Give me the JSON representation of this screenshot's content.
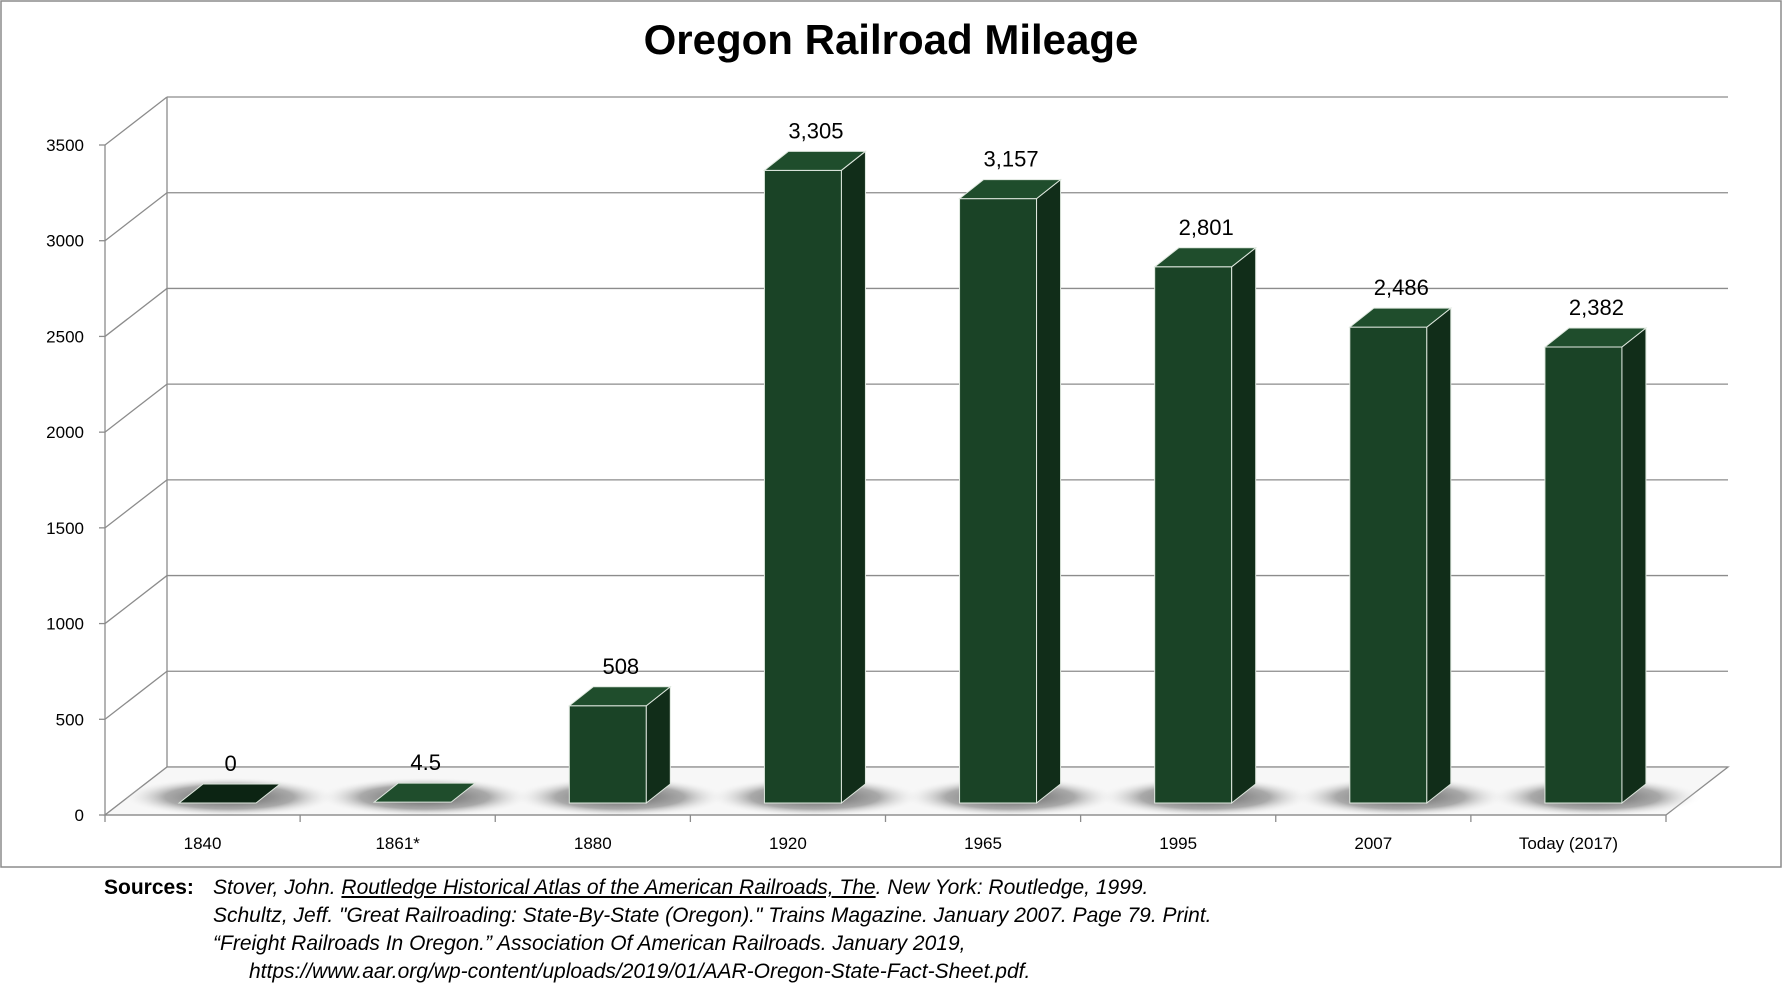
{
  "chart_data": {
    "type": "bar",
    "title": "Oregon Railroad Mileage",
    "categories": [
      "1840",
      "1861*",
      "1880",
      "1920",
      "1965",
      "1995",
      "2007",
      "Today  (2017)"
    ],
    "values": [
      0,
      4.5,
      508,
      3305,
      3157,
      2801,
      2486,
      2382
    ],
    "data_labels": [
      "0",
      "4.5",
      "508",
      "3,305",
      "3,157",
      "2,801",
      "2,486",
      "2,382"
    ],
    "xlabel": "",
    "ylabel": "",
    "ylim": [
      0,
      3500
    ],
    "yticks": [
      "0",
      "500",
      "1000",
      "1500",
      "2000",
      "2500",
      "3000",
      "3500"
    ],
    "grid": true,
    "legend": "none",
    "style": "3d-column",
    "colors": {
      "bar_front": "#1a4326",
      "bar_top": "#1f4d2c",
      "bar_side": "#112d19",
      "grid": "#8c8c8c",
      "floor": "#555555"
    }
  },
  "sources": {
    "label": "Sources:",
    "line1_author": "Stover, John. ",
    "line1_title": "Routledge Historical Atlas of the American Railroads, The",
    "line1_rest": ". New York: Routledge, 1999.",
    "line2": "Schultz, Jeff. \"Great Railroading: State-By-State (Oregon).\" Trains Magazine. January 2007. Page 79. Print.",
    "line3": "“Freight Railroads In Oregon.” Association Of American Railroads. January 2019,",
    "line4": "https://www.aar.org/wp-content/uploads/2019/01/AAR-Oregon-State-Fact-Sheet.pdf."
  }
}
